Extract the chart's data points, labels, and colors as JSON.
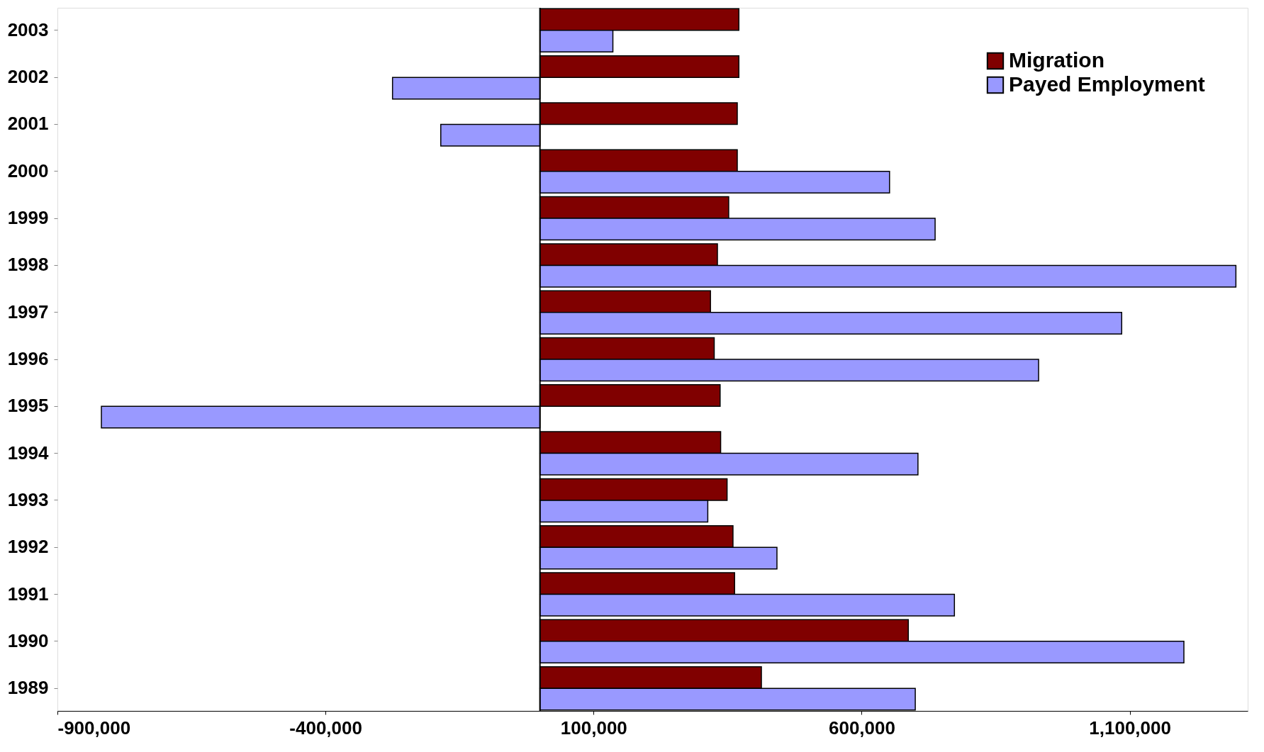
{
  "chart_data": {
    "type": "bar",
    "orientation": "horizontal",
    "categories": [
      "2003",
      "2002",
      "2001",
      "2000",
      "1999",
      "1998",
      "1997",
      "1996",
      "1995",
      "1994",
      "1993",
      "1992",
      "1991",
      "1990",
      "1989"
    ],
    "series": [
      {
        "name": "Migration",
        "color": "#800000",
        "values": [
          371000,
          371000,
          368000,
          368000,
          352000,
          331000,
          318000,
          325000,
          336000,
          337000,
          349000,
          360000,
          363000,
          687000,
          413000
        ]
      },
      {
        "name": "Payed Employment",
        "color": "#9999ff",
        "values": [
          136000,
          -275000,
          -185000,
          652000,
          737000,
          1298000,
          1085000,
          930000,
          -818000,
          705000,
          313000,
          442000,
          773000,
          1201000,
          700000
        ]
      }
    ],
    "xlim": [
      -900000,
      1320000
    ],
    "xticks": [
      {
        "value": -900000,
        "label": "-900,000"
      },
      {
        "value": -400000,
        "label": "-400,000"
      },
      {
        "value": 100000,
        "label": "100,000"
      },
      {
        "value": 600000,
        "label": "600,000"
      },
      {
        "value": 1100000,
        "label": "1,100,000"
      }
    ],
    "ref_lines": [
      {
        "axis": "x",
        "value": 0,
        "color": "#000000"
      }
    ],
    "grid": false,
    "legend": "top right"
  }
}
